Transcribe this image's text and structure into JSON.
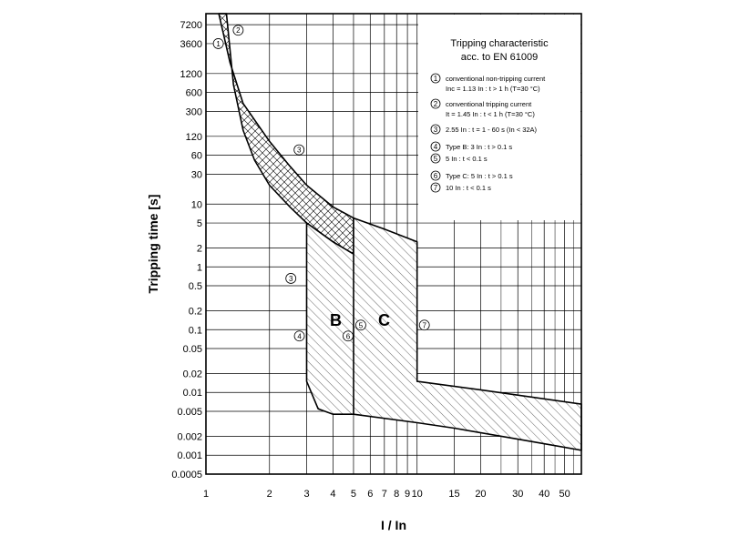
{
  "chart_data": {
    "type": "line",
    "title": "Tripping characteristic",
    "subtitle": "acc. to EN 61009",
    "xlabel": "I / In",
    "ylabel": "Tripping time [s]",
    "x_scale": "log",
    "y_scale": "log",
    "xlim": [
      1,
      60
    ],
    "ylim": [
      0.0005,
      10800
    ],
    "x_ticks": [
      1,
      2,
      3,
      4,
      5,
      6,
      7,
      8,
      9,
      10,
      15,
      20,
      30,
      40,
      50
    ],
    "x_tick_labels": [
      "1",
      "2",
      "3",
      "4",
      "5",
      "6",
      "7",
      "8",
      "9",
      "10",
      "15",
      "20",
      "30",
      "40",
      "50"
    ],
    "y_ticks": [
      7200,
      3600,
      1200,
      600,
      300,
      120,
      60,
      30,
      10,
      5,
      2,
      1,
      0.5,
      0.2,
      0.1,
      0.05,
      0.02,
      0.01,
      0.005,
      0.002,
      0.001,
      0.0005
    ],
    "y_tick_labels": [
      "7200",
      "3600",
      "1200",
      "600",
      "300",
      "120",
      "60",
      "30",
      "10",
      "5",
      "2",
      "1",
      "0.5",
      "0.2",
      "0.1",
      "0.05",
      "0.02",
      "0.01",
      "0.005",
      "0.002",
      "0.001",
      "0.0005"
    ],
    "grid": true,
    "series": [
      {
        "name": "B",
        "values": [
          [
            1.15,
            10800
          ],
          [
            1.3,
            1800
          ],
          [
            1.5,
            400
          ],
          [
            2,
            100
          ],
          [
            2.5,
            40
          ],
          [
            3,
            20
          ],
          [
            4,
            9
          ],
          [
            5,
            6
          ],
          [
            5,
            1.6
          ],
          [
            4,
            2.5
          ],
          [
            3,
            5
          ],
          [
            2.5,
            9
          ],
          [
            2,
            20
          ],
          [
            1.7,
            50
          ],
          [
            1.5,
            150
          ],
          [
            1.35,
            800
          ],
          [
            1.25,
            10800
          ]
        ]
      },
      {
        "name": "C",
        "values": [
          [
            5,
            6
          ],
          [
            7,
            4
          ],
          [
            10,
            2.5
          ],
          [
            10,
            0.015
          ],
          [
            20,
            0.011
          ],
          [
            60,
            0.0065
          ],
          [
            60,
            0.0012
          ],
          [
            30,
            0.0018
          ],
          [
            15,
            0.0027
          ],
          [
            10,
            0.0033
          ],
          [
            5,
            0.0045
          ],
          [
            5,
            1.6
          ],
          [
            4,
            2.5
          ],
          [
            3,
            5
          ],
          [
            3,
            0.015
          ],
          [
            3.4,
            0.0055
          ],
          [
            4,
            0.0045
          ],
          [
            5,
            0.0045
          ]
        ]
      }
    ],
    "region_labels": [
      "B",
      "C"
    ],
    "legend_placement": "top-right",
    "annotations": [
      {
        "marker": "1",
        "x": 1.1,
        "y": 3600
      },
      {
        "marker": "2",
        "x": 1.45,
        "y": 5500
      },
      {
        "marker": "3",
        "x": 2.55,
        "y": 60
      },
      {
        "marker": "3",
        "x": 2.55,
        "y": 0.8
      },
      {
        "marker": "4",
        "x": 3,
        "y": 0.1
      },
      {
        "marker": "6",
        "x": 5,
        "y": 0.1
      },
      {
        "marker": "5",
        "x": 5,
        "y": 0.1
      },
      {
        "marker": "7",
        "x": 10,
        "y": 0.1
      }
    ],
    "legend": [
      {
        "num": "1",
        "lines": [
          "conventional non-tripping current",
          "Inc = 1.13 In :  t > 1 h   (T=30 °C)"
        ]
      },
      {
        "num": "2",
        "lines": [
          "conventional tripping current",
          "It = 1.45 In :  t < 1 h   (T=30 °C)"
        ]
      },
      {
        "num": "3",
        "lines": [
          "2.55 In : t = 1 - 60 s (In < 32A)"
        ]
      },
      {
        "num": "4",
        "lines": [
          "Type B: 3 In : t > 0.1 s"
        ]
      },
      {
        "num": "5",
        "lines": [
          "5 In : t < 0.1 s"
        ]
      },
      {
        "num": "6",
        "lines": [
          "Type C: 5 In : t > 0.1 s"
        ]
      },
      {
        "num": "7",
        "lines": [
          "10 In : t < 0.1 s"
        ]
      }
    ]
  }
}
